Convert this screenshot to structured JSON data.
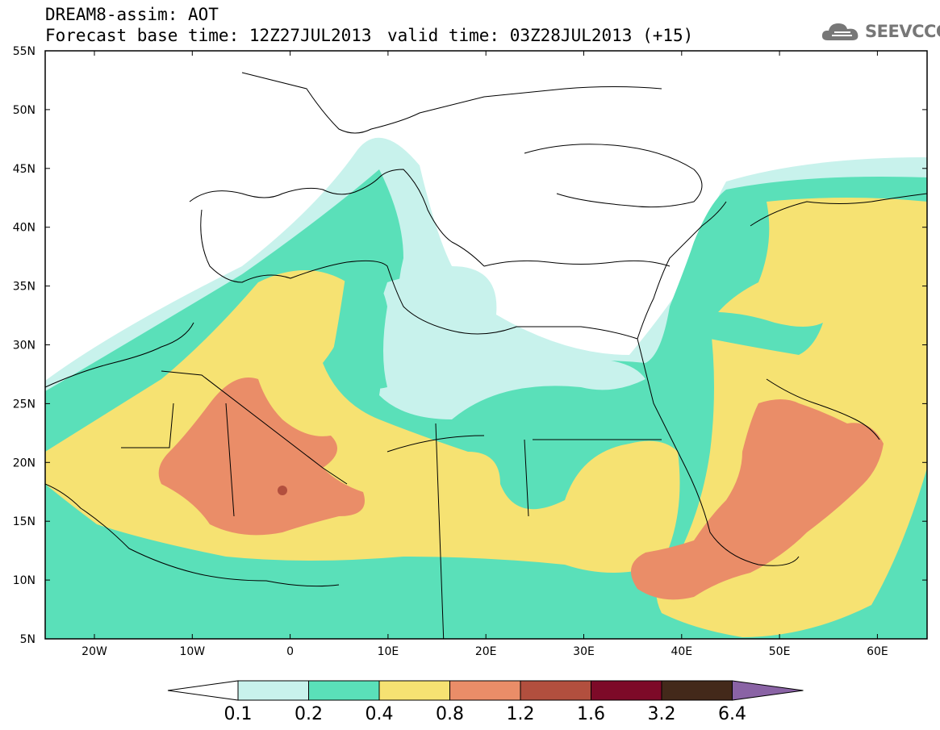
{
  "header": {
    "title_line1": "DREAM8-assim: AOT",
    "title_line2": "Forecast base time: 12Z27JUL2013",
    "valid_time": "valid time: 03Z28JUL2013 (+15)",
    "logo_text": "SEEVCCC"
  },
  "axes": {
    "lat_labels": [
      "55N",
      "50N",
      "45N",
      "40N",
      "35N",
      "30N",
      "25N",
      "20N",
      "15N",
      "10N",
      "5N"
    ],
    "lon_labels": [
      "20W",
      "10W",
      "0",
      "10E",
      "20E",
      "30E",
      "40E",
      "50E",
      "60E"
    ]
  },
  "colorbar": {
    "labels": [
      "0.1",
      "0.2",
      "0.4",
      "0.8",
      "1.2",
      "1.6",
      "3.2",
      "6.4"
    ],
    "colors": [
      "#c8f2ec",
      "#5ae0b9",
      "#f6e272",
      "#ea8d68",
      "#b24f3e",
      "#7d0a28",
      "#43291a"
    ],
    "over_color": "#8a63a5",
    "under_color": "#ffffff"
  },
  "colors": {
    "very_light": "#c8f2ec",
    "green": "#5ae0b9",
    "yellow": "#f6e272",
    "orange": "#ea8d68",
    "dark_red": "#b24f3e",
    "logo_gray": "#777777"
  }
}
